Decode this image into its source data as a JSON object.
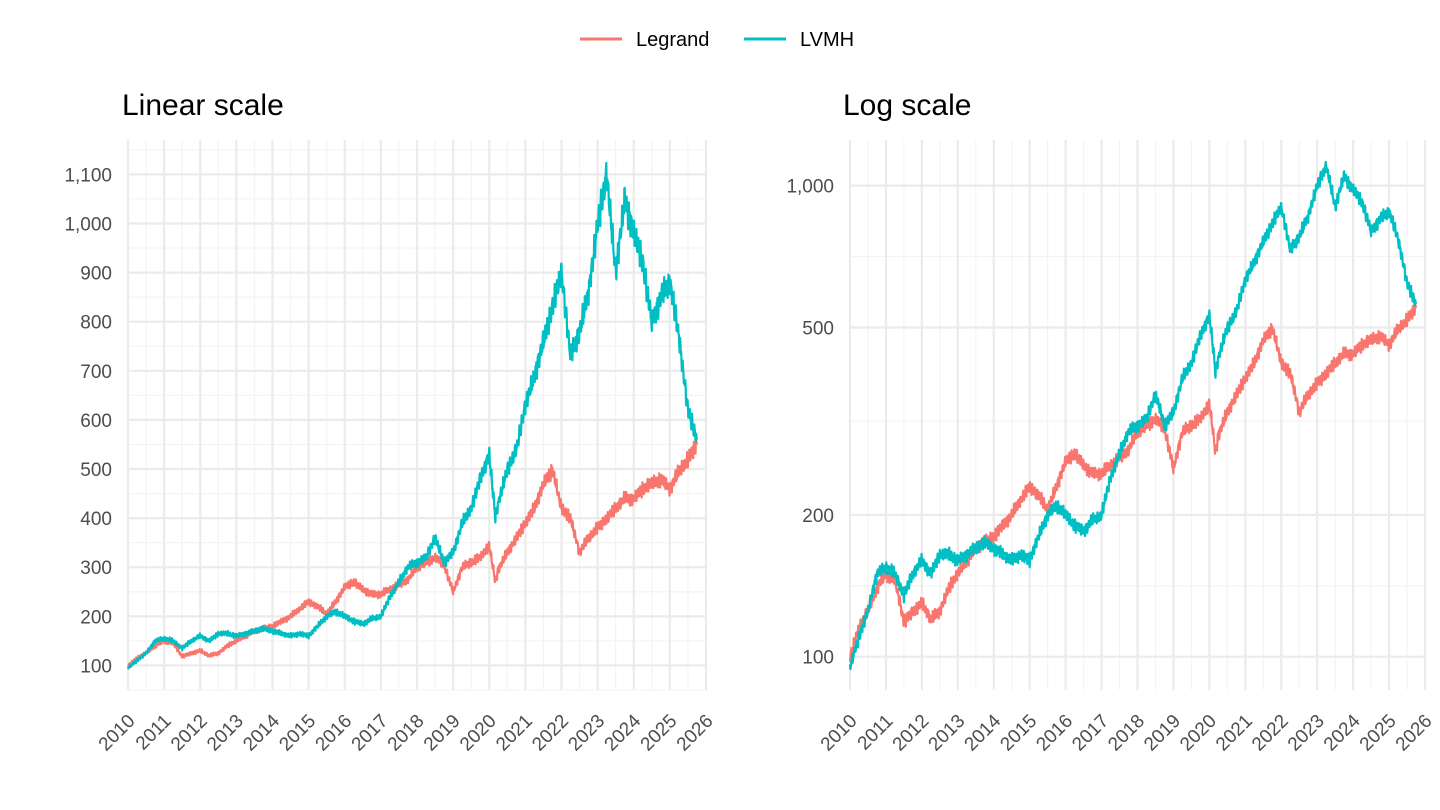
{
  "legend": {
    "position": "top",
    "items": [
      {
        "label": "Legrand",
        "color": "#F8766D"
      },
      {
        "label": "LVMH",
        "color": "#00BFC4"
      }
    ]
  },
  "chart_data": [
    {
      "type": "line",
      "title": "Linear scale",
      "scale": "linear",
      "xlabel": "",
      "ylabel": "",
      "xlim": [
        2010,
        2026
      ],
      "ylim": [
        50,
        1170
      ],
      "x_ticks": [
        "2010",
        "2011",
        "2012",
        "2013",
        "2014",
        "2015",
        "2016",
        "2017",
        "2018",
        "2019",
        "2020",
        "2021",
        "2022",
        "2023",
        "2024",
        "2025",
        "2026"
      ],
      "y_ticks": [
        "100",
        "200",
        "300",
        "400",
        "500",
        "600",
        "700",
        "800",
        "900",
        "1,000",
        "1,100"
      ],
      "y_tick_values": [
        100,
        200,
        300,
        400,
        500,
        600,
        700,
        800,
        900,
        1000,
        1100
      ],
      "grid": true,
      "series_ref": "shared"
    },
    {
      "type": "line",
      "title": "Log scale",
      "scale": "log10",
      "xlabel": "",
      "ylabel": "",
      "xlim": [
        2010,
        2026
      ],
      "ylim": [
        85,
        1250
      ],
      "x_ticks": [
        "2010",
        "2011",
        "2012",
        "2013",
        "2014",
        "2015",
        "2016",
        "2017",
        "2018",
        "2019",
        "2020",
        "2021",
        "2022",
        "2023",
        "2024",
        "2025",
        "2026"
      ],
      "y_ticks": [
        "100",
        "200",
        "500",
        "1,000"
      ],
      "y_tick_values": [
        100,
        200,
        500,
        1000
      ],
      "grid": true,
      "series_ref": "shared"
    }
  ],
  "series": [
    {
      "name": "Legrand",
      "color": "#F8766D",
      "x": [
        2010.0,
        2010.25,
        2010.5,
        2010.75,
        2011.0,
        2011.25,
        2011.5,
        2011.75,
        2012.0,
        2012.25,
        2012.5,
        2012.75,
        2013.0,
        2013.25,
        2013.5,
        2013.75,
        2014.0,
        2014.25,
        2014.5,
        2014.75,
        2015.0,
        2015.25,
        2015.5,
        2015.75,
        2016.0,
        2016.25,
        2016.5,
        2016.75,
        2017.0,
        2017.25,
        2017.5,
        2017.75,
        2018.0,
        2018.25,
        2018.5,
        2018.75,
        2019.0,
        2019.25,
        2019.5,
        2019.75,
        2020.0,
        2020.17,
        2020.25,
        2020.5,
        2020.75,
        2021.0,
        2021.25,
        2021.5,
        2021.75,
        2022.0,
        2022.25,
        2022.5,
        2022.75,
        2023.0,
        2023.25,
        2023.5,
        2023.75,
        2024.0,
        2024.25,
        2024.5,
        2024.75,
        2025.0,
        2025.25,
        2025.5,
        2025.75
      ],
      "values": [
        100,
        115,
        125,
        140,
        150,
        145,
        118,
        125,
        130,
        120,
        125,
        140,
        150,
        160,
        170,
        175,
        180,
        190,
        200,
        215,
        230,
        220,
        205,
        230,
        260,
        270,
        255,
        245,
        245,
        255,
        265,
        275,
        300,
        310,
        320,
        305,
        250,
        300,
        310,
        320,
        345,
        270,
        295,
        330,
        360,
        390,
        420,
        470,
        500,
        420,
        400,
        330,
        360,
        380,
        400,
        420,
        440,
        440,
        460,
        470,
        480,
        460,
        495,
        520,
        550
      ]
    },
    {
      "name": "LVMH",
      "color": "#00BFC4",
      "x": [
        2010.0,
        2010.25,
        2010.5,
        2010.75,
        2011.0,
        2011.25,
        2011.5,
        2011.75,
        2012.0,
        2012.25,
        2012.5,
        2012.75,
        2013.0,
        2013.25,
        2013.5,
        2013.75,
        2014.0,
        2014.25,
        2014.5,
        2014.75,
        2015.0,
        2015.25,
        2015.5,
        2015.75,
        2016.0,
        2016.25,
        2016.5,
        2016.75,
        2017.0,
        2017.25,
        2017.5,
        2017.75,
        2018.0,
        2018.25,
        2018.5,
        2018.75,
        2019.0,
        2019.25,
        2019.5,
        2019.75,
        2020.0,
        2020.17,
        2020.25,
        2020.5,
        2020.75,
        2021.0,
        2021.25,
        2021.5,
        2021.75,
        2022.0,
        2022.25,
        2022.5,
        2022.75,
        2023.0,
        2023.25,
        2023.5,
        2023.75,
        2024.0,
        2024.25,
        2024.5,
        2024.75,
        2025.0,
        2025.25,
        2025.5,
        2025.75
      ],
      "values": [
        95,
        110,
        125,
        150,
        155,
        150,
        135,
        150,
        160,
        150,
        165,
        165,
        160,
        165,
        170,
        175,
        170,
        165,
        160,
        165,
        160,
        180,
        200,
        210,
        200,
        190,
        185,
        195,
        200,
        240,
        270,
        300,
        310,
        320,
        360,
        310,
        330,
        390,
        420,
        480,
        530,
        400,
        430,
        500,
        540,
        630,
        690,
        760,
        830,
        900,
        730,
        780,
        860,
        1000,
        1100,
        900,
        1050,
        980,
        920,
        800,
        850,
        880,
        770,
        620,
        560
      ]
    }
  ]
}
